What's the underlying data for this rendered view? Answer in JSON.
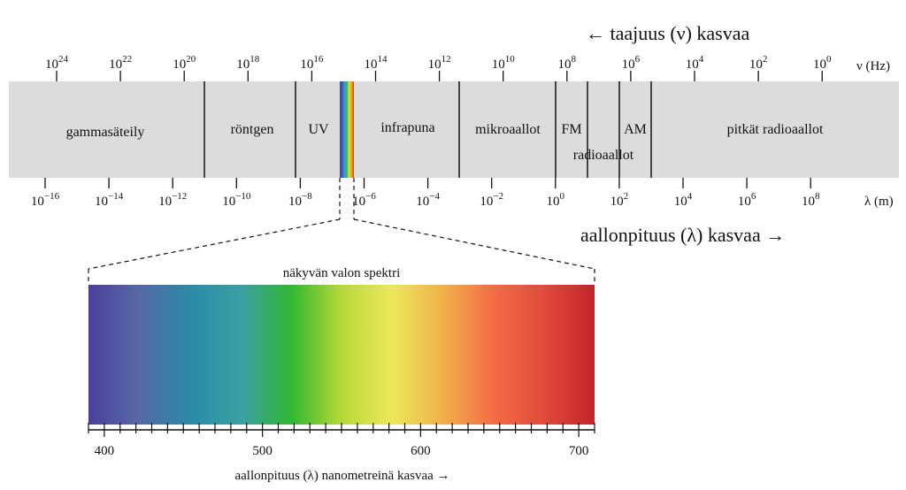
{
  "frequency_axis": {
    "arrow_label": "← taajuus (ν) kasvaa",
    "unit_label": "ν (Hz)",
    "ticks": [
      {
        "base": "10",
        "exp": "24"
      },
      {
        "base": "10",
        "exp": "22"
      },
      {
        "base": "10",
        "exp": "20"
      },
      {
        "base": "10",
        "exp": "18"
      },
      {
        "base": "10",
        "exp": "16"
      },
      {
        "base": "10",
        "exp": "14"
      },
      {
        "base": "10",
        "exp": "12"
      },
      {
        "base": "10",
        "exp": "10"
      },
      {
        "base": "10",
        "exp": "8"
      },
      {
        "base": "10",
        "exp": "6"
      },
      {
        "base": "10",
        "exp": "4"
      },
      {
        "base": "10",
        "exp": "2"
      },
      {
        "base": "10",
        "exp": "0"
      }
    ]
  },
  "wavelength_axis": {
    "arrow_label": "aallonpituus (λ) kasvaa →",
    "unit_label": "λ (m)",
    "ticks": [
      {
        "base": "10",
        "exp": "−16"
      },
      {
        "base": "10",
        "exp": "−14"
      },
      {
        "base": "10",
        "exp": "−12"
      },
      {
        "base": "10",
        "exp": "−10"
      },
      {
        "base": "10",
        "exp": "−8"
      },
      {
        "base": "10",
        "exp": "−6"
      },
      {
        "base": "10",
        "exp": "−4"
      },
      {
        "base": "10",
        "exp": "−2"
      },
      {
        "base": "10",
        "exp": "0"
      },
      {
        "base": "10",
        "exp": "2"
      },
      {
        "base": "10",
        "exp": "4"
      },
      {
        "base": "10",
        "exp": "6"
      },
      {
        "base": "10",
        "exp": "8"
      }
    ]
  },
  "bands": [
    {
      "name": "gammasäteily"
    },
    {
      "name": "röntgen"
    },
    {
      "name": "UV"
    },
    {
      "name": "infrapuna"
    },
    {
      "name": "mikroaallot"
    },
    {
      "name": "FM"
    },
    {
      "name": "radioaallot"
    },
    {
      "name": "AM"
    },
    {
      "name": "pitkät radioaallot"
    }
  ],
  "visible": {
    "title": "näkyvän valon spektri",
    "axis_label": "aallonpituus (λ) nanometreinä kasvaa →",
    "range_nm": [
      390,
      710
    ],
    "ticks": [
      {
        "value": 400,
        "label": "400"
      },
      {
        "value": 500,
        "label": "500"
      },
      {
        "value": 600,
        "label": "600"
      },
      {
        "value": 700,
        "label": "700"
      }
    ],
    "colors": [
      "#4b3f9c",
      "#5669a6",
      "#2a8aa8",
      "#3aa0a3",
      "#2fb830",
      "#b8d838",
      "#ece85a",
      "#f2b04a",
      "#f36c45",
      "#e24a3c",
      "#c4232a"
    ]
  },
  "colors": {
    "band_background": "#dcdcdc",
    "rainbow": [
      "#5b3f9a",
      "#2c5fb0",
      "#2aa8c8",
      "#3cb44a",
      "#e8e03a",
      "#f39a2a",
      "#e4352b"
    ]
  }
}
